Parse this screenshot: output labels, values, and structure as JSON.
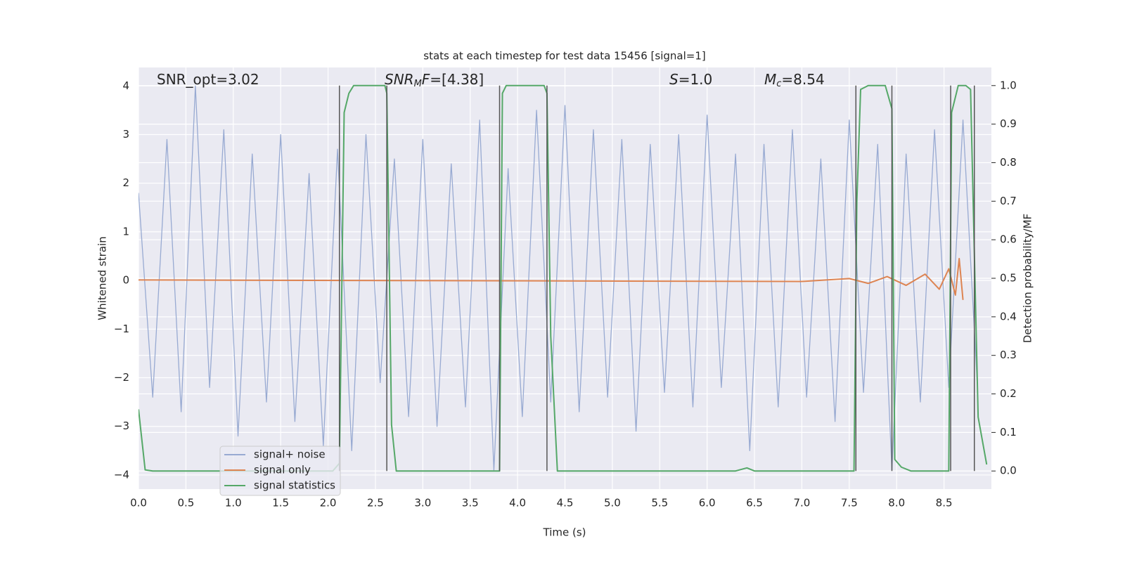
{
  "chart_data": {
    "type": "line",
    "title": "stats at each timestep for test data 15456 [signal=1]",
    "xlabel": "Time (s)",
    "ylabel": "Whitened strain",
    "y2label": "Detection probability/MF",
    "annotations": [
      [
        "SNR_opt=3.02"
      ],
      [
        "SNR",
        "M",
        "F",
        "=[4.38]"
      ],
      [
        "S",
        "=1.0"
      ],
      [
        "M",
        "c",
        "=8.54"
      ]
    ],
    "xlim": [
      0,
      9.0
    ],
    "ylim": [
      -4.29,
      4.38
    ],
    "y2lim": [
      -0.047,
      1.047
    ],
    "xticks": [
      {
        "value": 0,
        "label": "0.0"
      },
      0.5,
      {
        "value": 1,
        "label": "1.0"
      },
      1.5,
      {
        "value": 2,
        "label": "2.0"
      },
      2.5,
      {
        "value": 3,
        "label": "3.0"
      },
      3.5,
      {
        "value": 4,
        "label": "4.0"
      },
      4.5,
      {
        "value": 5,
        "label": "5.0"
      },
      5.5,
      {
        "value": 6,
        "label": "6.0"
      },
      6.5,
      {
        "value": 7,
        "label": "7.0"
      },
      7.5,
      {
        "value": 8,
        "label": "8.0"
      },
      8.5
    ],
    "yticks": [
      {
        "value": -4,
        "label": "−4"
      },
      {
        "value": -3,
        "label": "−3"
      },
      {
        "value": -2,
        "label": "−2"
      },
      {
        "value": -1,
        "label": "−1"
      },
      0,
      1,
      2,
      3,
      4
    ],
    "y2ticks": [
      {
        "value": 0,
        "label": "0.0"
      },
      0.1,
      0.2,
      0.3,
      0.4,
      0.5,
      0.6,
      0.7,
      0.8,
      0.9,
      {
        "value": 1,
        "label": "1.0"
      }
    ],
    "grid": true,
    "legend": "lower left",
    "series": [
      {
        "name": "signal+ noise",
        "color": "#98aad2",
        "x": [
          0,
          0.15,
          0.3,
          0.45,
          0.6,
          0.75,
          0.9,
          1.05,
          1.2,
          1.35,
          1.5,
          1.65,
          1.8,
          1.95,
          2.1,
          2.25,
          2.4,
          2.55,
          2.7,
          2.85,
          3,
          3.15,
          3.3,
          3.45,
          3.6,
          3.75,
          3.9,
          4.05,
          4.2,
          4.35,
          4.5,
          4.65,
          4.8,
          4.95,
          5.1,
          5.25,
          5.4,
          5.55,
          5.7,
          5.85,
          6,
          6.15,
          6.3,
          6.45,
          6.6,
          6.75,
          6.9,
          7.05,
          7.2,
          7.35,
          7.5,
          7.65,
          7.8,
          7.95,
          8.1,
          8.25,
          8.4,
          8.55,
          8.7,
          8.85
        ],
        "values": [
          1.8,
          -2.4,
          2.9,
          -2.7,
          4.0,
          -2.2,
          3.1,
          -3.2,
          2.6,
          -2.5,
          3.0,
          -2.9,
          2.2,
          -3.4,
          2.7,
          -3.5,
          3.0,
          -2.1,
          2.5,
          -2.8,
          2.9,
          -3.0,
          2.4,
          -2.6,
          3.3,
          -3.9,
          2.3,
          -2.8,
          3.5,
          -2.5,
          3.6,
          -2.7,
          3.1,
          -2.4,
          2.9,
          -3.1,
          2.8,
          -2.3,
          3.0,
          -2.6,
          3.4,
          -2.2,
          2.6,
          -3.5,
          2.8,
          -2.6,
          3.1,
          -2.4,
          2.5,
          -2.9,
          3.3,
          -2.3,
          2.8,
          -3.9,
          2.6,
          -2.5,
          3.1,
          -2.2,
          3.3,
          -2.1
        ]
      },
      {
        "name": "signal only",
        "color": "#dd8452",
        "x": [
          0,
          7.0,
          7.5,
          7.7,
          7.9,
          8.1,
          8.3,
          8.45,
          8.55,
          8.62,
          8.66,
          8.7
        ],
        "values": [
          0.01,
          -0.02,
          0.04,
          -0.06,
          0.08,
          -0.1,
          0.13,
          -0.18,
          0.24,
          -0.3,
          0.45,
          -0.4
        ]
      },
      {
        "name": "signal statistics",
        "color": "#55a868",
        "axis": "y2",
        "x": [
          0,
          0.07,
          0.15,
          2.05,
          2.12,
          2.17,
          2.22,
          2.27,
          2.6,
          2.62,
          2.67,
          2.72,
          3.81,
          3.84,
          3.88,
          4.28,
          4.31,
          4.35,
          4.42,
          6.3,
          6.42,
          6.5,
          7.55,
          7.58,
          7.62,
          7.7,
          7.88,
          7.95,
          7.98,
          8.05,
          8.15,
          8.55,
          8.58,
          8.65,
          8.73,
          8.78,
          8.86,
          8.95
        ],
        "values": [
          0.16,
          0.003,
          0,
          0,
          0.02,
          0.93,
          0.98,
          1,
          1,
          0.98,
          0.12,
          0,
          0,
          0.98,
          1,
          1,
          0.98,
          0.35,
          0,
          0,
          0.008,
          0,
          0,
          0.7,
          0.99,
          1,
          1,
          0.94,
          0.03,
          0.01,
          0,
          0,
          0.93,
          1,
          1,
          0.99,
          0.14,
          0.017
        ]
      }
    ],
    "vlines": {
      "color": "#555555",
      "x": [
        2.12,
        2.62,
        3.81,
        4.31,
        7.57,
        7.95,
        8.57,
        8.82
      ]
    }
  }
}
